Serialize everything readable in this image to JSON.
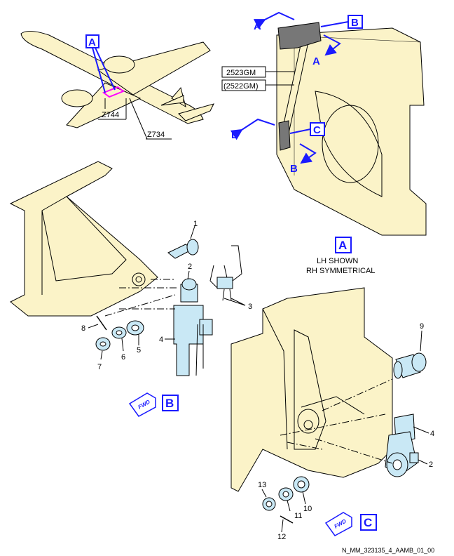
{
  "aircraft": {
    "view_tag": "A",
    "zone_labels": [
      "Z744",
      "Z734"
    ]
  },
  "view_a_detail": {
    "tag_b": "B",
    "tag_c": "C",
    "arrow_a": "A",
    "arrow_b": "B",
    "part_number": "2523GM",
    "part_number_alt": "(2522GM)"
  },
  "view_a_caption": {
    "tag": "A",
    "line1": "LH SHOWN",
    "line2": "RH SYMMETRICAL"
  },
  "view_b": {
    "tag": "B",
    "fwd": "FWD",
    "items": [
      "1",
      "2",
      "3",
      "4",
      "5",
      "6",
      "7",
      "8"
    ]
  },
  "view_c": {
    "tag": "C",
    "fwd": "FWD",
    "items": [
      "9",
      "4",
      "2",
      "13",
      "11",
      "10",
      "12"
    ]
  },
  "reference": "N_MM_323135_4_AAMB_01_00",
  "colors": {
    "structure_fill": "#fbf3c8",
    "part_fill": "#c9e8f5",
    "highlight": "#ff00ff",
    "tag_blue": "#1a1aff"
  }
}
